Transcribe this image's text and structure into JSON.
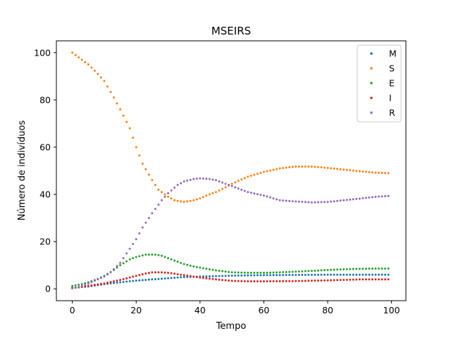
{
  "chart_data": {
    "type": "scatter",
    "title": "MSEIRS",
    "xlabel": "Tempo",
    "ylabel": "Número de indivíduos",
    "xlim": [
      -5,
      104.5
    ],
    "ylim": [
      -5,
      105
    ],
    "xticks": [
      0,
      20,
      40,
      60,
      80,
      100
    ],
    "yticks": [
      0,
      20,
      40,
      60,
      80,
      100
    ],
    "grid": false,
    "legend_position": "top-right",
    "x_start": 0,
    "x_step": 1,
    "series": [
      {
        "name": "M",
        "color": "#1f77b4",
        "knots": [
          [
            0,
            0.5
          ],
          [
            5,
            1.0
          ],
          [
            10,
            2.0
          ],
          [
            15,
            2.8
          ],
          [
            20,
            3.5
          ],
          [
            25,
            4.0
          ],
          [
            30,
            4.5
          ],
          [
            35,
            5.0
          ],
          [
            40,
            5.2
          ],
          [
            45,
            5.4
          ],
          [
            50,
            5.6
          ],
          [
            60,
            5.8
          ],
          [
            70,
            5.9
          ],
          [
            80,
            6.0
          ],
          [
            90,
            6.0
          ],
          [
            99,
            6.0
          ]
        ]
      },
      {
        "name": "S",
        "color": "#ff7f0e",
        "knots": [
          [
            0,
            100
          ],
          [
            2,
            98
          ],
          [
            5,
            95
          ],
          [
            8,
            91
          ],
          [
            10,
            88
          ],
          [
            13,
            81
          ],
          [
            15,
            76
          ],
          [
            18,
            68
          ],
          [
            20,
            60
          ],
          [
            22,
            53
          ],
          [
            25,
            46
          ],
          [
            27,
            42
          ],
          [
            30,
            39
          ],
          [
            32,
            37.5
          ],
          [
            35,
            36.8
          ],
          [
            38,
            37.5
          ],
          [
            40,
            38.3
          ],
          [
            42,
            39.5
          ],
          [
            45,
            41
          ],
          [
            48,
            43
          ],
          [
            50,
            44.5
          ],
          [
            55,
            47.5
          ],
          [
            60,
            49.5
          ],
          [
            65,
            51
          ],
          [
            70,
            51.8
          ],
          [
            75,
            51.8
          ],
          [
            80,
            51.2
          ],
          [
            85,
            50.5
          ],
          [
            90,
            49.8
          ],
          [
            95,
            49.2
          ],
          [
            99,
            49
          ]
        ]
      },
      {
        "name": "E",
        "color": "#2ca02c",
        "knots": [
          [
            0,
            1.2
          ],
          [
            3,
            2
          ],
          [
            5,
            2.8
          ],
          [
            8,
            4.2
          ],
          [
            10,
            5.5
          ],
          [
            13,
            8
          ],
          [
            15,
            10
          ],
          [
            18,
            12.5
          ],
          [
            20,
            13.5
          ],
          [
            23,
            14.5
          ],
          [
            26,
            14.5
          ],
          [
            28,
            14
          ],
          [
            30,
            13
          ],
          [
            33,
            11.5
          ],
          [
            35,
            10.5
          ],
          [
            38,
            9.5
          ],
          [
            40,
            9
          ],
          [
            45,
            7.8
          ],
          [
            50,
            7
          ],
          [
            55,
            6.8
          ],
          [
            60,
            6.8
          ],
          [
            65,
            7
          ],
          [
            70,
            7.3
          ],
          [
            75,
            7.6
          ],
          [
            80,
            8
          ],
          [
            85,
            8.3
          ],
          [
            90,
            8.5
          ],
          [
            95,
            8.6
          ],
          [
            99,
            8.6
          ]
        ]
      },
      {
        "name": "I",
        "color": "#d62728",
        "knots": [
          [
            0,
            0.3
          ],
          [
            3,
            0.8
          ],
          [
            5,
            1.3
          ],
          [
            10,
            2.3
          ],
          [
            15,
            3.8
          ],
          [
            20,
            5.5
          ],
          [
            23,
            6.5
          ],
          [
            25,
            7
          ],
          [
            28,
            7
          ],
          [
            30,
            6.8
          ],
          [
            33,
            6.2
          ],
          [
            35,
            5.8
          ],
          [
            38,
            5.2
          ],
          [
            40,
            4.8
          ],
          [
            45,
            4
          ],
          [
            50,
            3.4
          ],
          [
            55,
            3.2
          ],
          [
            60,
            3.2
          ],
          [
            70,
            3.3
          ],
          [
            80,
            3.6
          ],
          [
            90,
            4
          ],
          [
            99,
            4
          ]
        ]
      },
      {
        "name": "R",
        "color": "#9467bd",
        "knots": [
          [
            0,
            0.2
          ],
          [
            3,
            1.2
          ],
          [
            5,
            2.3
          ],
          [
            8,
            4
          ],
          [
            10,
            5.2
          ],
          [
            12,
            7
          ],
          [
            15,
            11
          ],
          [
            17,
            15
          ],
          [
            20,
            21
          ],
          [
            22,
            26
          ],
          [
            25,
            32
          ],
          [
            28,
            37.5
          ],
          [
            30,
            40.5
          ],
          [
            33,
            44
          ],
          [
            35,
            45.5
          ],
          [
            38,
            46.5
          ],
          [
            40,
            46.8
          ],
          [
            43,
            46.5
          ],
          [
            45,
            46
          ],
          [
            48,
            44.5
          ],
          [
            50,
            43.5
          ],
          [
            55,
            41
          ],
          [
            60,
            39.5
          ],
          [
            65,
            37.5
          ],
          [
            70,
            37
          ],
          [
            75,
            36.6
          ],
          [
            80,
            36.8
          ],
          [
            85,
            37.5
          ],
          [
            90,
            38.2
          ],
          [
            95,
            39
          ],
          [
            99,
            39.3
          ]
        ]
      }
    ]
  }
}
